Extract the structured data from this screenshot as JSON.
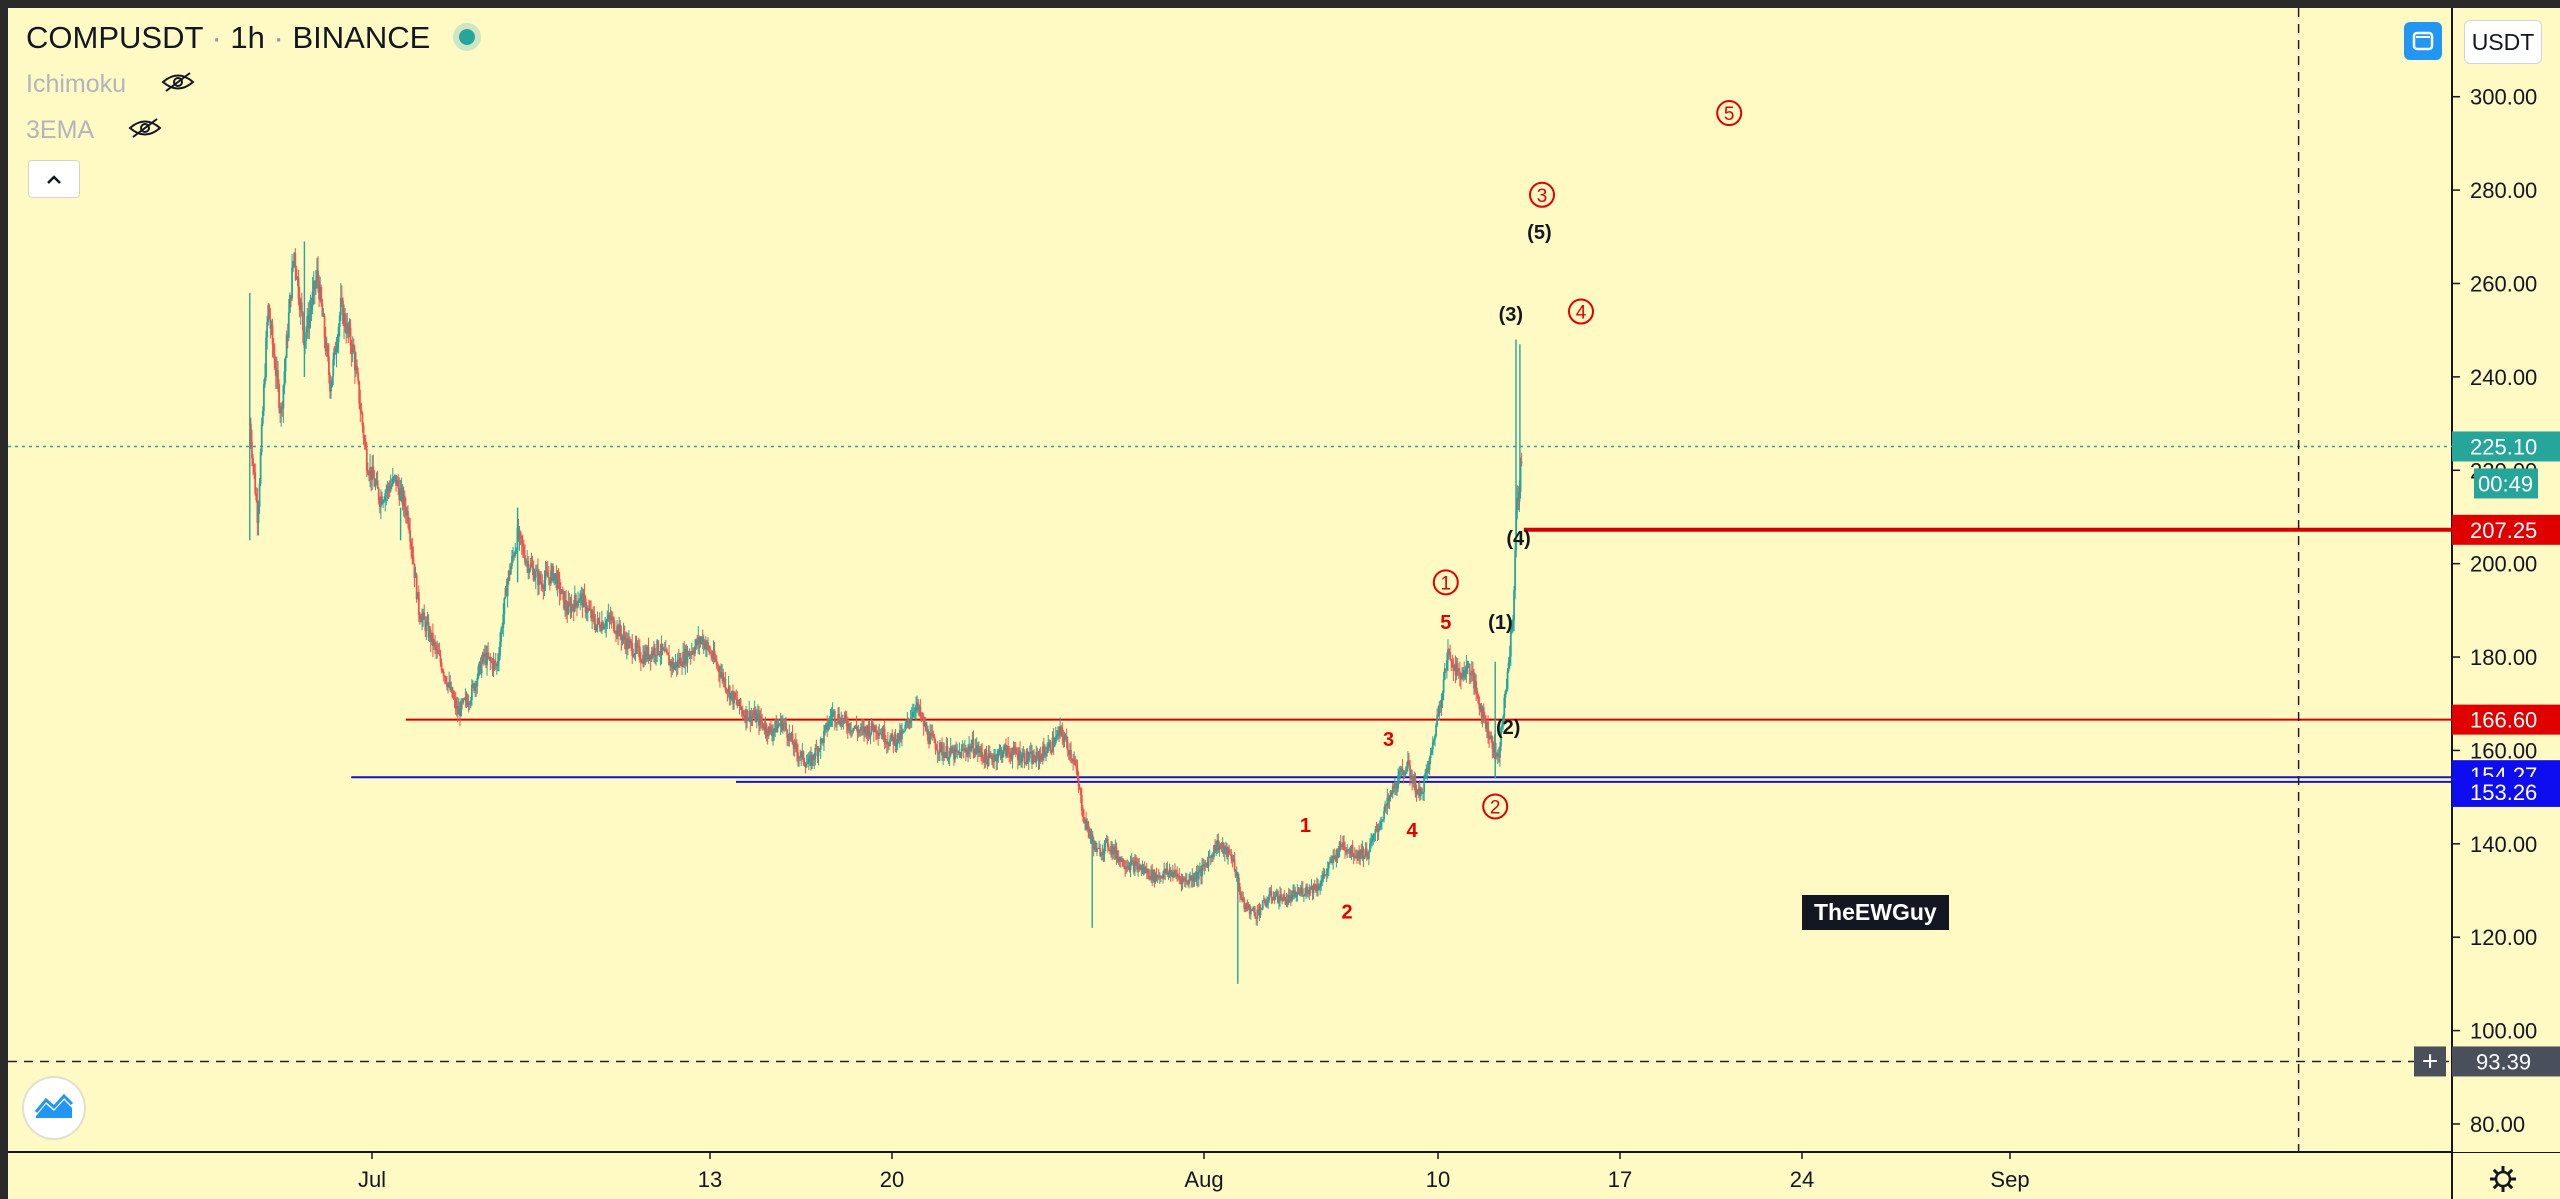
{
  "header": {
    "symbol": "COMPUSDT",
    "interval": "1h",
    "exchange": "BINANCE",
    "separator": "·",
    "indicators": [
      {
        "label": "Ichimoku",
        "icon": "eye-crossed-icon"
      },
      {
        "label": "3EMA",
        "icon": "eye-crossed-icon"
      }
    ],
    "collapse_icon": "chevron-up-icon",
    "live_status_color": "#26a69a"
  },
  "toolbar": {
    "currency_label": "USDT",
    "scale_icon": "scale-toggle-icon",
    "settings_icon": "gear-icon",
    "crosshair_add_icon": "plus-icon",
    "logo_icon": "tradingview-logo-icon"
  },
  "watermark": "TheEWGuy",
  "colors": {
    "background": "#fff9c4",
    "axis_bg": "#fff9c4",
    "up_candle": "#26a69a",
    "down_candle": "#ef5350",
    "wave_red": "#e00000",
    "wave_black": "#131722",
    "resistance_line": "#d50000",
    "support_line": "#1414c8",
    "current_price_bg": "#26a69a",
    "crosshair_bg": "#4a4f5c"
  },
  "chart_data": {
    "type": "candlestick",
    "y_axis": {
      "ticks": [
        "300.00",
        "280.00",
        "260.00",
        "240.00",
        "220.00",
        "200.00",
        "180.00",
        "160.00",
        "140.00",
        "120.00",
        "100.00",
        "80.00"
      ],
      "tick_values": [
        300,
        280,
        260,
        240,
        220,
        200,
        180,
        160,
        140,
        120,
        100,
        80
      ],
      "range": [
        74,
        319
      ],
      "position": "right"
    },
    "x_axis": {
      "ticks": [
        "Jul",
        "13",
        "20",
        "Aug",
        "10",
        "17",
        "24",
        "Sep"
      ],
      "tick_days": [
        30,
        43,
        50,
        62,
        71,
        78,
        85,
        93
      ],
      "range_days": [
        16,
        110
      ],
      "unit": "days since Jun 1 2020"
    },
    "ohlc_path": [
      [
        25.3,
        230
      ],
      [
        25.6,
        210
      ],
      [
        26.0,
        255
      ],
      [
        26.5,
        232
      ],
      [
        27.0,
        267
      ],
      [
        27.4,
        248
      ],
      [
        27.9,
        262
      ],
      [
        28.4,
        238
      ],
      [
        28.8,
        255
      ],
      [
        29.3,
        245
      ],
      [
        29.8,
        222
      ],
      [
        30.3,
        214
      ],
      [
        30.9,
        218
      ],
      [
        31.4,
        210
      ],
      [
        31.8,
        190
      ],
      [
        32.2,
        185
      ],
      [
        32.7,
        178
      ],
      [
        33.3,
        168
      ],
      [
        33.8,
        172
      ],
      [
        34.3,
        180
      ],
      [
        34.8,
        178
      ],
      [
        35.2,
        196
      ],
      [
        35.6,
        206
      ],
      [
        36.0,
        200
      ],
      [
        36.5,
        196
      ],
      [
        37.0,
        198
      ],
      [
        37.5,
        190
      ],
      [
        38.0,
        193
      ],
      [
        38.6,
        187
      ],
      [
        39.2,
        188
      ],
      [
        39.8,
        183
      ],
      [
        40.4,
        180
      ],
      [
        41.0,
        182
      ],
      [
        41.6,
        178
      ],
      [
        42.2,
        181
      ],
      [
        42.7,
        184
      ],
      [
        43.3,
        178
      ],
      [
        43.8,
        172
      ],
      [
        44.3,
        168
      ],
      [
        44.8,
        167
      ],
      [
        45.3,
        164
      ],
      [
        45.8,
        166
      ],
      [
        46.3,
        160
      ],
      [
        46.8,
        157
      ],
      [
        47.3,
        162
      ],
      [
        47.7,
        168
      ],
      [
        48.2,
        166
      ],
      [
        48.8,
        164
      ],
      [
        49.4,
        165
      ],
      [
        49.9,
        162
      ],
      [
        50.4,
        163
      ],
      [
        50.9,
        170
      ],
      [
        51.4,
        163
      ],
      [
        51.9,
        160
      ],
      [
        52.5,
        159
      ],
      [
        53.1,
        161
      ],
      [
        53.7,
        158
      ],
      [
        54.3,
        160
      ],
      [
        54.9,
        159
      ],
      [
        55.5,
        158
      ],
      [
        56.1,
        161
      ],
      [
        56.5,
        164
      ],
      [
        57.0,
        158
      ],
      [
        57.4,
        145
      ],
      [
        57.9,
        138
      ],
      [
        58.3,
        140
      ],
      [
        58.9,
        136
      ],
      [
        59.5,
        135
      ],
      [
        60.1,
        133
      ],
      [
        60.7,
        134
      ],
      [
        61.3,
        132
      ],
      [
        61.9,
        134
      ],
      [
        62.5,
        140
      ],
      [
        63.1,
        137
      ],
      [
        63.5,
        127
      ],
      [
        64.0,
        125
      ],
      [
        64.6,
        129
      ],
      [
        65.2,
        128
      ],
      [
        65.8,
        130
      ],
      [
        66.4,
        131
      ],
      [
        66.9,
        136
      ],
      [
        67.3,
        140
      ],
      [
        67.8,
        138
      ],
      [
        68.3,
        138
      ],
      [
        68.8,
        145
      ],
      [
        69.3,
        152
      ],
      [
        69.8,
        157
      ],
      [
        70.3,
        150
      ],
      [
        70.7,
        158
      ],
      [
        71.0,
        168
      ],
      [
        71.4,
        181
      ],
      [
        71.8,
        176
      ],
      [
        72.2,
        178
      ],
      [
        72.6,
        170
      ],
      [
        73.0,
        163
      ],
      [
        73.3,
        158
      ],
      [
        73.6,
        172
      ],
      [
        73.9,
        190
      ],
      [
        74.0,
        210
      ],
      [
        74.1,
        215
      ],
      [
        74.25,
        225
      ]
    ],
    "hlines": [
      {
        "price": 207.25,
        "label": "207.25",
        "color": "#d50000",
        "from_day": 74.3,
        "width": 4
      },
      {
        "price": 166.6,
        "label": "166.60",
        "color": "#d50000",
        "from_day": 31.3,
        "width": 2
      },
      {
        "price": 154.27,
        "label": "154.27",
        "color": "#1414c8",
        "from_day": 29.2,
        "width": 2
      },
      {
        "price": 153.26,
        "label": "153.26",
        "color": "#1414c8",
        "from_day": 44.0,
        "width": 2
      }
    ],
    "current_price": {
      "value": 225.1,
      "label": "225.10",
      "countdown": "00:49"
    },
    "crosshair": {
      "price": 93.39,
      "label": "93.39",
      "vertical_day": 104.1
    },
    "wave_labels": [
      {
        "text": "5",
        "day": 82.2,
        "price": 296.5,
        "style": "circle-red"
      },
      {
        "text": "3",
        "day": 75.0,
        "price": 279.0,
        "style": "circle-red"
      },
      {
        "text": "(5)",
        "day": 74.9,
        "price": 271.0,
        "style": "black"
      },
      {
        "text": "(3)",
        "day": 73.8,
        "price": 253.5,
        "style": "black"
      },
      {
        "text": "4",
        "day": 76.5,
        "price": 254.0,
        "style": "circle-red"
      },
      {
        "text": "(4)",
        "day": 74.1,
        "price": 205.5,
        "style": "black"
      },
      {
        "text": "1",
        "day": 71.3,
        "price": 196.0,
        "style": "circle-red"
      },
      {
        "text": "5",
        "day": 71.3,
        "price": 187.5,
        "style": "red"
      },
      {
        "text": "(1)",
        "day": 73.4,
        "price": 187.5,
        "style": "black"
      },
      {
        "text": "(2)",
        "day": 73.7,
        "price": 165.0,
        "style": "black"
      },
      {
        "text": "3",
        "day": 69.1,
        "price": 162.5,
        "style": "red"
      },
      {
        "text": "2",
        "day": 73.2,
        "price": 148.0,
        "style": "circle-red"
      },
      {
        "text": "1",
        "day": 65.9,
        "price": 144.0,
        "style": "red"
      },
      {
        "text": "4",
        "day": 70.0,
        "price": 143.0,
        "style": "red"
      },
      {
        "text": "2",
        "day": 67.5,
        "price": 125.5,
        "style": "red"
      }
    ]
  }
}
